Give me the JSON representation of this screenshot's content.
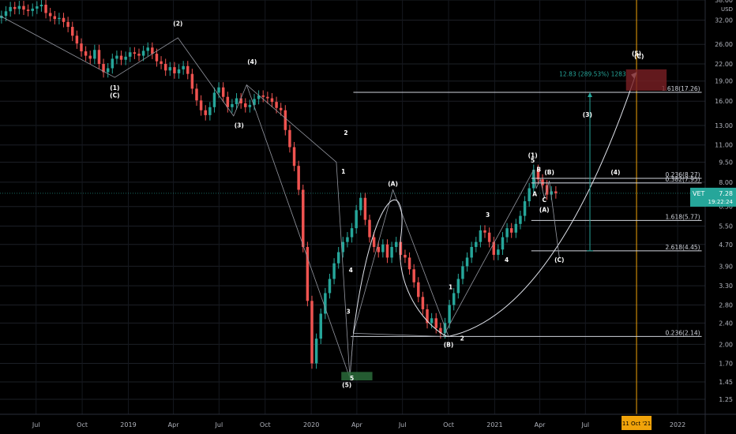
{
  "chart_data": {
    "type": "candlestick",
    "y_unit": "USD",
    "y_scale": "log",
    "ylim": [
      1.1,
      38.0
    ],
    "y_ticks": [
      38.0,
      32.0,
      26.0,
      22.0,
      19.0,
      16.0,
      13.0,
      11.0,
      9.5,
      8.0,
      6.5,
      5.5,
      4.7,
      3.9,
      3.3,
      2.8,
      2.4,
      2.0,
      1.7,
      1.45,
      1.25
    ],
    "x_ticks": [
      "Jul",
      "Oct",
      "2019",
      "Apr",
      "Jul",
      "Oct",
      "2020",
      "Apr",
      "Jul",
      "Oct",
      "2021",
      "Apr",
      "Jul",
      "2022"
    ],
    "x_tick_dates": [
      "2018-07-01",
      "2018-10-01",
      "2019-01-01",
      "2019-04-01",
      "2019-07-01",
      "2019-10-01",
      "2020-01-01",
      "2020-04-01",
      "2020-07-01",
      "2020-10-01",
      "2021-01-01",
      "2021-04-01",
      "2021-07-01",
      "2022-01-01"
    ],
    "x_range": [
      "2018-04-20",
      "2022-02-25"
    ],
    "series_closes": [
      33.2,
      34.5,
      35.8,
      35.2,
      36.1,
      35.0,
      34.6,
      35.3,
      36.0,
      36.5,
      34.0,
      33.1,
      32.3,
      32.6,
      31.5,
      30.2,
      28.0,
      26.2,
      24.5,
      23.6,
      23.0,
      24.8,
      22.0,
      20.5,
      21.2,
      23.0,
      23.6,
      22.8,
      23.4,
      24.3,
      24.0,
      23.6,
      24.6,
      25.3,
      24.0,
      22.5,
      22.0,
      20.8,
      21.4,
      20.3,
      21.0,
      21.6,
      20.2,
      17.8,
      16.1,
      14.8,
      14.2,
      15.2,
      17.2,
      18.0,
      16.6,
      15.2,
      15.6,
      16.4,
      15.7,
      15.2,
      15.5,
      16.3,
      16.8,
      16.6,
      16.4,
      15.9,
      15.1,
      14.8,
      12.5,
      10.8,
      9.2,
      7.5,
      4.6,
      2.9,
      1.7,
      2.1,
      2.6,
      3.1,
      3.5,
      4.0,
      4.4,
      4.8,
      5.0,
      5.4,
      6.3,
      7.0,
      5.8,
      5.0,
      4.6,
      4.4,
      4.7,
      4.2,
      4.6,
      4.8,
      4.3,
      4.2,
      3.8,
      3.4,
      3.0,
      2.7,
      2.4,
      2.5,
      2.3,
      2.2,
      2.4,
      2.8,
      3.1,
      3.5,
      3.9,
      4.2,
      4.6,
      4.8,
      5.3,
      5.2,
      4.8,
      4.3,
      4.5,
      5.0,
      5.4,
      5.2,
      5.6,
      6.0,
      6.8,
      7.6,
      8.9,
      8.2,
      7.8,
      7.2,
      7.4,
      7.28
    ],
    "current_price": "7.28",
    "ticker": "VET",
    "countdown": "19:22:24",
    "cursor_date_label": "11 Oct '21",
    "fib_levels": [
      {
        "label": "1.618(17.26)",
        "value": 17.26
      },
      {
        "label": "0.236(8.27)",
        "value": 8.27
      },
      {
        "label": "0.382(7.95)",
        "value": 7.95
      },
      {
        "label": "1.618(5.77)",
        "value": 5.77
      },
      {
        "label": "2.618(4.45)",
        "value": 4.45
      },
      {
        "label": "0.236(2.14)",
        "value": 2.14
      }
    ],
    "measure_label": "12.83 (289.53%) 1283",
    "wave_labels": [
      {
        "text": "(2)",
        "date": "2019-04-10",
        "price": 30.5
      },
      {
        "text": "(1)",
        "date": "2018-12-05",
        "price": 17.6
      },
      {
        "text": "(C)",
        "date": "2018-12-05",
        "price": 16.5
      },
      {
        "text": "(4)",
        "date": "2019-09-05",
        "price": 22.0
      },
      {
        "text": "(3)",
        "date": "2019-08-10",
        "price": 12.8
      },
      {
        "text": "2",
        "date": "2020-03-10",
        "price": 12.0
      },
      {
        "text": "1",
        "date": "2020-03-05",
        "price": 8.6
      },
      {
        "text": "4",
        "date": "2020-03-20",
        "price": 3.7
      },
      {
        "text": "3",
        "date": "2020-03-15",
        "price": 2.6
      },
      {
        "text": "5",
        "date": "2020-03-22",
        "price": 1.47
      },
      {
        "text": "(5)",
        "date": "2020-03-12",
        "price": 1.39
      },
      {
        "text": "(A)",
        "date": "2020-06-12",
        "price": 7.75
      },
      {
        "text": "1",
        "date": "2020-10-05",
        "price": 3.2
      },
      {
        "text": "2",
        "date": "2020-10-28",
        "price": 2.07
      },
      {
        "text": "(B)",
        "date": "2020-10-01",
        "price": 1.96
      },
      {
        "text": "3",
        "date": "2020-12-18",
        "price": 5.95
      },
      {
        "text": "4",
        "date": "2021-01-25",
        "price": 4.05
      },
      {
        "text": "(1)",
        "date": "2021-03-18",
        "price": 9.9
      },
      {
        "text": "5",
        "date": "2021-03-18",
        "price": 9.45
      },
      {
        "text": "B",
        "date": "2021-03-30",
        "price": 8.75
      },
      {
        "text": "(B)",
        "date": "2021-04-20",
        "price": 8.55
      },
      {
        "text": "A",
        "date": "2021-03-22",
        "price": 7.1
      },
      {
        "text": "C",
        "date": "2021-04-10",
        "price": 6.75
      },
      {
        "text": "(A)",
        "date": "2021-04-10",
        "price": 6.2
      },
      {
        "text": "(C)",
        "date": "2021-05-10",
        "price": 4.05
      },
      {
        "text": "(4)",
        "date": "2021-08-30",
        "price": 8.55
      },
      {
        "text": "(3)",
        "date": "2021-07-05",
        "price": 14.0
      },
      {
        "text": "(5)",
        "date": "2021-10-11",
        "price": 23.6
      },
      {
        "text": "(C)",
        "date": "2021-10-16",
        "price": 23.1
      }
    ]
  }
}
